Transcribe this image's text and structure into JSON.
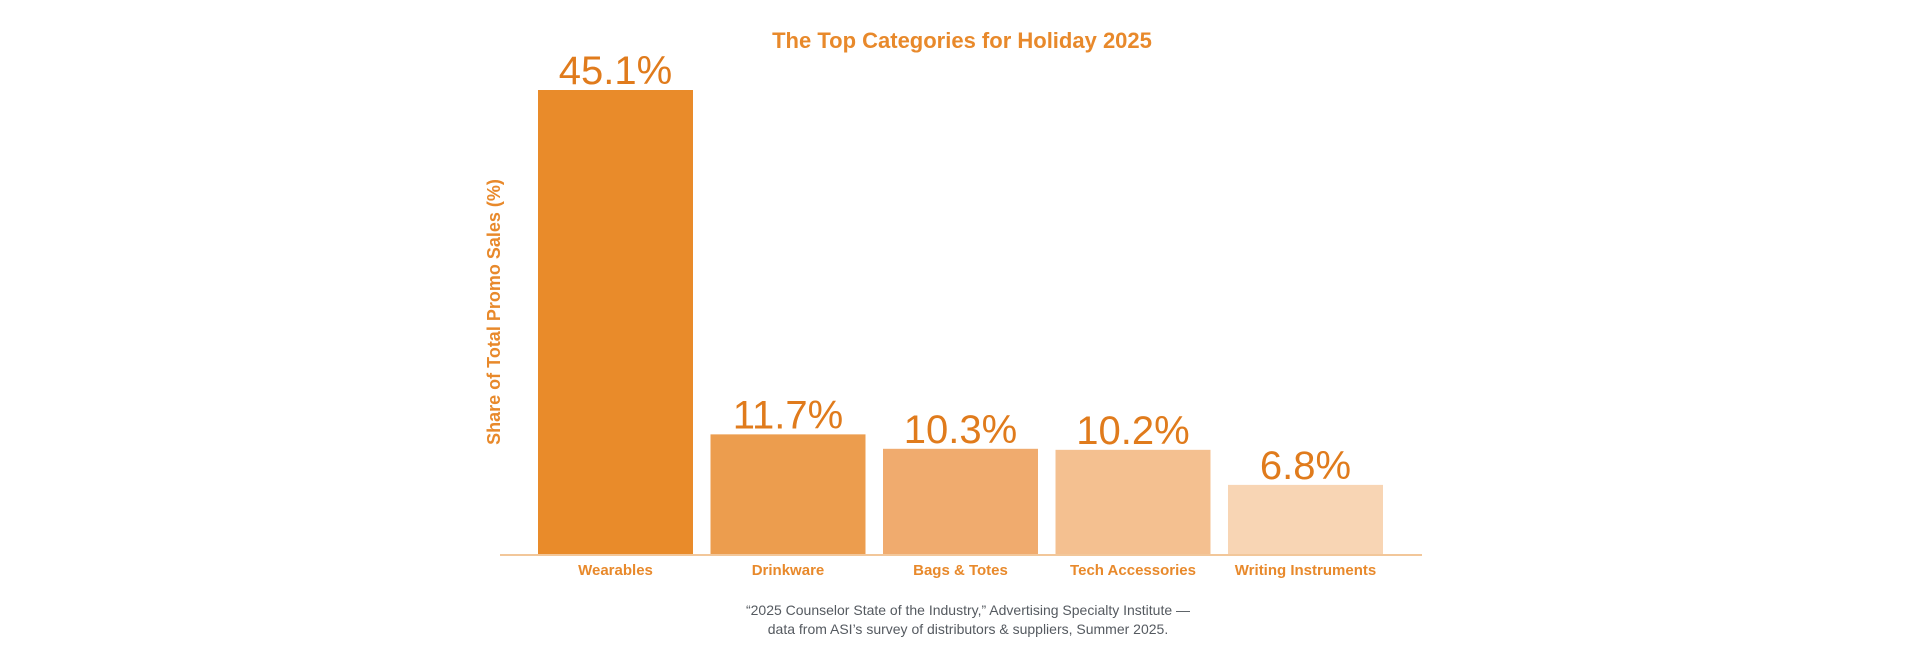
{
  "chart_data": {
    "type": "bar",
    "title": "The Top Categories for Holiday 2025",
    "xlabel": "",
    "ylabel": "Share of Total Promo Sales (%)",
    "ylim": [
      0,
      45.1
    ],
    "grid": false,
    "categories": [
      "Wearables",
      "Drinkware",
      "Bags & Totes",
      "Tech Accessories",
      "Writing Instruments"
    ],
    "values": [
      45.1,
      11.7,
      10.3,
      10.2,
      6.8
    ],
    "value_labels": [
      "45.1%",
      "11.7%",
      "10.3%",
      "10.2%",
      "6.8%"
    ],
    "bar_colors": [
      "#e98b2a",
      "#ec9d4e",
      "#f0ab6e",
      "#f4c090",
      "#f8d5b4"
    ],
    "source_lines": [
      "“2025 Counselor State of the Industry,” Advertising Specialty Institute —",
      "data from ASI’s survey of distributors & suppliers, Summer 2025."
    ]
  },
  "colors": {
    "accent": "#e8892b",
    "value_text": "#e07b1c",
    "axis_line": "#f2c79a",
    "source_text": "#555a60"
  }
}
